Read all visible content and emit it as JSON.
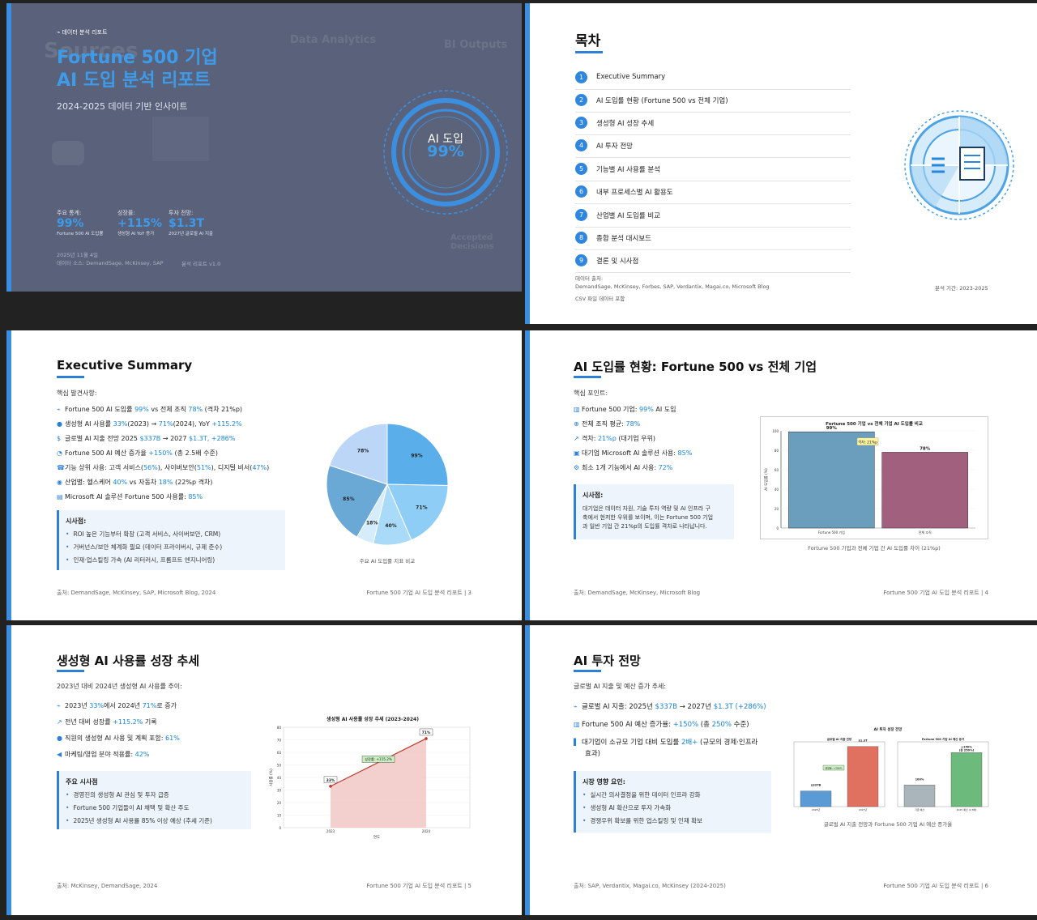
{
  "s1": {
    "tag": "데이터 분석 리포트",
    "title_line1": "Fortune 500 기업",
    "title_line2": "AI 도입 분석 리포트",
    "subtitle": "2024-2025 데이터 기반 인사이트",
    "bg_words": [
      "Sources",
      "Data Analytics",
      "BI Outputs",
      "Accepted Decisions"
    ],
    "ring_label": "AI 도입",
    "ring_value": "99%",
    "stats": [
      {
        "label": "주요 통계:",
        "value": "99%",
        "desc": "Fortune 500 AI 도입률"
      },
      {
        "label": "성장률:",
        "value": "+115%",
        "desc": "생성형 AI YoY 증가"
      },
      {
        "label": "투자 전망:",
        "value": "$1.3T",
        "desc": "2027년 글로벌 AI 지출"
      }
    ],
    "date": "2025년 11월 4일",
    "source": "데이터 소스: DemandSage, McKinsey, SAP",
    "version": "분석 리포트 v1.0"
  },
  "s2": {
    "title": "목차",
    "items": [
      "Executive Summary",
      "AI 도입률 현황 (Fortune 500 vs 전체 기업)",
      "생성형 AI 성장 추세",
      "AI 투자 전망",
      "기능별 AI 사용률 분석",
      "내부 프로세스별 AI 활용도",
      "산업별 AI 도입률 비교",
      "종합 분석 대시보드",
      "결론 및 시사점"
    ],
    "src_label": "데이터 출처:",
    "src_list": "DemandSage, McKinsey, Forbes, SAP, Verdantix, Magai.co, Microsoft Blog",
    "csv_note": "CSV 파일 데이터 포함",
    "period": "분석 기간: 2023-2025"
  },
  "s3": {
    "title": "Executive Summary",
    "intro": "핵심 발견사항:",
    "bullets": [
      {
        "icon": "⌁",
        "parts": [
          "Fortune 500 AI 도입률 ",
          "99%",
          " vs 전체 조직 ",
          "78%",
          " (격차 21%p)"
        ]
      },
      {
        "icon": "●",
        "parts": [
          "생성형 AI 사용률 ",
          "33%",
          "(2023) → ",
          "71%",
          "(2024), YoY ",
          "+115.2%",
          ""
        ]
      },
      {
        "icon": "$",
        "parts": [
          "글로벌 AI 지출 전망 2025 ",
          "$337B",
          " → 2027 ",
          "$1.3T, +286%",
          ""
        ]
      },
      {
        "icon": "◔",
        "parts": [
          "Fortune 500 AI 예산 증가율 ",
          "+150%",
          " (총 2.5배 수준)",
          "",
          ""
        ]
      },
      {
        "icon": "☎",
        "parts": [
          "기능 상위 사용: 고객 서비스(",
          "56%",
          "), 사이버보안(",
          "51%",
          "), 디지털 비서(",
          "47%",
          ")"
        ]
      },
      {
        "icon": "◉",
        "parts": [
          "산업별: 헬스케어 ",
          "40%",
          " vs 자동차 ",
          "18%",
          " (22%p 격차)"
        ]
      },
      {
        "icon": "▤",
        "parts": [
          "Microsoft AI 솔루션 Fortune 500 사용률: ",
          "85%",
          "",
          "",
          ""
        ]
      }
    ],
    "box_title": "시사점:",
    "box_items": [
      "ROI 높은 기능부터 확장 (고객 서비스, 사이버보안, CRM)",
      "거버넌스/보안 체계화 필요 (데이터 프라이버시, 규제 준수)",
      "인재·업스킬링 가속 (AI 리터러시, 프롬프트 엔지니어링)"
    ],
    "chart_caption": "주요 AI 도입률 지표 비교",
    "footer_left": "출처: DemandSage, McKinsey, SAP, Microsoft Blog, 2024",
    "footer_right": "Fortune 500 기업 AI 도입 분석 리포트 | 3"
  },
  "s4": {
    "title": "AI 도입률 현황: Fortune 500 vs 전체 기업",
    "intro": "핵심 포인트:",
    "bullets": [
      {
        "icon": "▥",
        "parts": [
          "Fortune 500 기업: ",
          "99%",
          " AI 도입"
        ]
      },
      {
        "icon": "⊕",
        "parts": [
          "전체 조직 평균: ",
          "78%",
          ""
        ]
      },
      {
        "icon": "↗",
        "parts": [
          "격차: ",
          "21%p",
          " (대기업 우위)"
        ]
      },
      {
        "icon": "▣",
        "parts": [
          "대기업 Microsoft AI 솔루션 사용: ",
          "85%",
          ""
        ]
      },
      {
        "icon": "⚙",
        "parts": [
          "최소 1개 기능에서 AI 사용: ",
          "72%",
          ""
        ]
      }
    ],
    "box_title": "시사점:",
    "box_text": [
      "대기업은 데이터 자원, 기술 투자 역량 및 AI 인프라 구",
      "축에서 현저한 우위를 보이며, 이는 Fortune 500 기업",
      "과 일반 기업 간 21%p의 도입률 격차로 나타납니다."
    ],
    "chart_caption": "Fortune 500 기업과 전체 기업 간 AI 도입률 차이 (21%p)",
    "footer_left": "출처: DemandSage, McKinsey, Microsoft Blog",
    "footer_right": "Fortune 500 기업 AI 도입 분석 리포트 | 4"
  },
  "s5": {
    "title": "생성형 AI 사용률 성장 추세",
    "intro": "2023년 대비 2024년 생성형 AI 사용률 추이:",
    "bullets": [
      {
        "icon": "⌁",
        "parts": [
          "2023년 ",
          "33%",
          "에서 2024년 ",
          "71%",
          "로 증가"
        ]
      },
      {
        "icon": "↗",
        "parts": [
          "전년 대비 성장률 ",
          "+115.2%",
          " 기록",
          "",
          ""
        ]
      },
      {
        "icon": "●",
        "parts": [
          "직원의 생성형 AI 사용 및 계획 포함: ",
          "61%",
          "",
          "",
          ""
        ]
      },
      {
        "icon": "◀",
        "parts": [
          "마케팅/영업 분야 적용률: ",
          "42%",
          "",
          "",
          ""
        ]
      }
    ],
    "box_title": "주요 시사점",
    "box_items": [
      "경영진의 생성형 AI 관심 및 투자 급증",
      "Fortune 500 기업들이 AI 채택 및 확산 주도",
      "2025년 생성형 AI 사용률 85% 이상 예상 (추세 기준)"
    ],
    "footer_left": "출처: McKinsey, DemandSage, 2024",
    "footer_right": "Fortune 500 기업 AI 도입 분석 리포트 | 5"
  },
  "s6": {
    "title": "AI 투자 전망",
    "intro": "글로벌 AI 지출 및 예산 증가 추세:",
    "bullets": [
      {
        "icon": "⌁",
        "parts": [
          "글로벌 AI 지출: 2025년 ",
          "$337B",
          " → 2027년 ",
          "$1.3T (+286%)",
          ""
        ]
      },
      {
        "icon": "▥",
        "parts": [
          "Fortune 500 AI 예산 증가율: ",
          "+150%",
          " (총 ",
          "250%",
          " 수준)"
        ]
      },
      {
        "icon": "▌",
        "parts": [
          "대기업이 소규모 기업 대비 도입률 ",
          "2배+",
          " (규모의 경제·인프라",
          "",
          ""
        ]
      }
    ],
    "bullet_cont": "효과)",
    "box_title": "시장 영향 요인:",
    "box_items": [
      "실시간 의사결정을 위한 데이터 인프라 강화",
      "생성형 AI 확산으로 투자 가속화",
      "경쟁우위 확보를 위한 업스킬링 및 인재 확보"
    ],
    "chart_caption": "글로벌 AI 지출 전망과 Fortune 500 기업 AI 예산 증가율",
    "footer_left": "출처: SAP, Verdantix, Magai.co, McKinsey (2024-2025)",
    "footer_right": "Fortune 500 기업 AI 도입 분석 리포트 | 6"
  },
  "chart_data": [
    {
      "type": "pie",
      "title": "주요 AI 도입률 지표 비교",
      "labels": [
        "99%",
        "71%",
        "40%",
        "18%",
        "85%",
        "78%"
      ],
      "values": [
        99,
        71,
        40,
        18,
        85,
        78
      ],
      "colors": [
        "#5aaeea",
        "#8ecdf5",
        "#a9dbf8",
        "#d5ecfb",
        "#6aa8d6",
        "#bcd6f7"
      ]
    },
    {
      "type": "bar",
      "title": "Fortune 500 기업 vs 전체 기업 AI 도입률 비교",
      "categories": [
        "Fortune 500 기업",
        "전체 조직"
      ],
      "values": [
        99,
        78
      ],
      "value_labels": [
        "99%",
        "78%"
      ],
      "colors": [
        "#6b9dbd",
        "#a2607f"
      ],
      "ylabel": "AI 도입률 (%)",
      "ylim": [
        0,
        100
      ],
      "yticks": [
        0,
        20,
        40,
        60,
        80,
        100
      ],
      "annotation": "격차: 21%p"
    },
    {
      "type": "area",
      "title": "생성형 AI 사용률 성장 추세 (2023-2024)",
      "x": [
        "2023",
        "2024"
      ],
      "values": [
        33,
        71
      ],
      "value_labels": [
        "33%",
        "71%"
      ],
      "annotation": "성장률: +115.2%",
      "xlabel": "연도",
      "ylabel": "사용률 (%)",
      "ylim": [
        0,
        80
      ],
      "yticks": [
        0,
        10,
        20,
        30,
        40,
        50,
        60,
        70,
        80
      ]
    },
    {
      "type": "bar",
      "title": "AI 투자 성장 전망",
      "panels": [
        {
          "title": "글로벌 AI 지출 전망",
          "categories": [
            "2025년",
            "2027년"
          ],
          "values": [
            337,
            1300
          ],
          "value_labels": [
            "$337B",
            "$1.3T"
          ],
          "colors": [
            "#5b9bd5",
            "#e07060"
          ],
          "ylim": [
            0,
            1400
          ],
          "annotation": "성장률: +286%"
        },
        {
          "title": "Fortune 500 기업 AI 예산 증가",
          "categories": [
            "기존 예산",
            "2025 예산 (2.5배)"
          ],
          "values": [
            100,
            250
          ],
          "value_labels": [
            "100%",
            "+150%\n(총 250%)"
          ],
          "colors": [
            "#aab4bb",
            "#6dba7d"
          ],
          "ylim": [
            0,
            300
          ]
        }
      ]
    }
  ]
}
